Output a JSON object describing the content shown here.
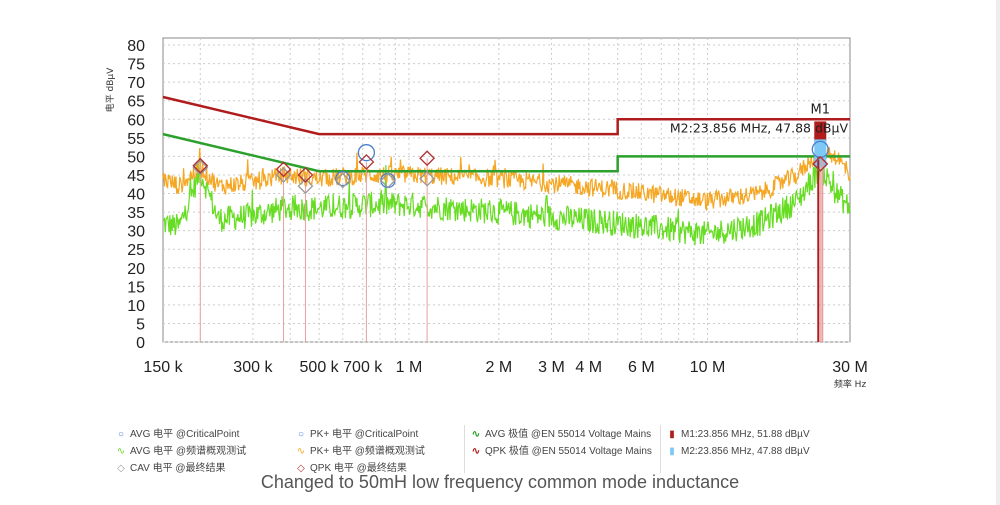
{
  "chart_data": {
    "type": "line",
    "ylabel": "电平 dBµV",
    "xlabel": "频率 Hz",
    "xscale": "log",
    "xlim": [
      150000,
      30000000
    ],
    "ylim": [
      0,
      80
    ],
    "yticks": [
      0,
      5,
      10,
      15,
      20,
      25,
      30,
      35,
      40,
      45,
      50,
      55,
      60,
      65,
      70,
      75,
      80
    ],
    "xticks": [
      {
        "v": 150000,
        "label": "150 k"
      },
      {
        "v": 300000,
        "label": "300 k"
      },
      {
        "v": 500000,
        "label": "500 k"
      },
      {
        "v": 700000,
        "label": "700 k"
      },
      {
        "v": 1000000,
        "label": "1 M"
      },
      {
        "v": 2000000,
        "label": "2 M"
      },
      {
        "v": 3000000,
        "label": "3 M"
      },
      {
        "v": 4000000,
        "label": "4 M"
      },
      {
        "v": 6000000,
        "label": "6 M"
      },
      {
        "v": 10000000,
        "label": "10 M"
      },
      {
        "v": 30000000,
        "label": "30 M"
      }
    ],
    "grid": true,
    "series": [
      {
        "name": "QPK 极值 @EN 55014 Voltage Mains",
        "color": "#b01c1c",
        "x": [
          150000,
          500000,
          5000000,
          5000000,
          30000000
        ],
        "y": [
          66,
          56,
          56,
          60,
          60
        ]
      },
      {
        "name": "AVG 极值 @EN 55014 Voltage Mains",
        "color": "#2ca02c",
        "x": [
          150000,
          500000,
          5000000,
          5000000,
          30000000
        ],
        "y": [
          56,
          46,
          46,
          50,
          50
        ]
      },
      {
        "name": "PK+ 电平 @频谱概观测试",
        "color": "#f5a623",
        "x": [
          150000,
          170000,
          200000,
          230000,
          300000,
          380000,
          500000,
          700000,
          1000000,
          2000000,
          5000000,
          10000000,
          15000000,
          20000000,
          23856000,
          27000000,
          30000000
        ],
        "y": [
          44,
          42,
          47,
          42,
          43,
          45,
          44,
          45,
          45,
          44,
          41,
          38,
          40,
          45,
          52,
          50,
          45
        ]
      },
      {
        "name": "AVG 电平 @频谱概观测试",
        "color": "#66dd22",
        "x": [
          150000,
          170000,
          200000,
          230000,
          300000,
          380000,
          500000,
          700000,
          1000000,
          2000000,
          5000000,
          10000000,
          15000000,
          20000000,
          23856000,
          27000000,
          30000000
        ],
        "y": [
          32,
          31,
          46,
          33,
          34,
          36,
          36,
          37,
          37,
          35,
          32,
          29,
          32,
          38,
          47,
          40,
          36
        ]
      }
    ],
    "points": {
      "avg_critical": {
        "name": "AVG 电平 @CriticalPoint",
        "color": "#4a7fd0",
        "x": [
          600000,
          850000
        ],
        "y": [
          44,
          43.5
        ]
      },
      "pk_critical": {
        "name": "PK+ 电平 @CriticalPoint",
        "color": "#4a7fd0",
        "x": [
          720000,
          23856000
        ],
        "y": [
          51,
          51.88
        ]
      },
      "cav_final": {
        "name": "CAV 电平 @最终结果",
        "color": "#999999",
        "x": [
          200000,
          380000,
          450000,
          600000,
          850000,
          1150000,
          23856000
        ],
        "y": [
          47,
          45,
          42,
          43.5,
          43.5,
          44,
          47.88
        ]
      },
      "qpk_final": {
        "name": "QPK 电平 @最终结果",
        "color": "#b03030",
        "x": [
          200000,
          380000,
          450000,
          720000,
          1150000,
          23856000
        ],
        "y": [
          47.5,
          46.5,
          45,
          48.5,
          49.5,
          48
        ]
      }
    },
    "markers": [
      {
        "label": "M1",
        "text": "M1:23.856 MHz, 51.88 dBµV",
        "x": 23856000,
        "y": 51.88,
        "color": "#b01c1c"
      },
      {
        "label": "M2",
        "text": "M2:23.856 MHz, 47.88 dBµV",
        "x": 23856000,
        "y": 47.88,
        "color": "#7ec8f5"
      }
    ],
    "annotation_text": "M2:23.856 MHz, 47.88 dBµV",
    "marker_label": "M1"
  },
  "legend": [
    {
      "sym": "○",
      "color": "#4a7fd0",
      "text": "AVG 电平 @CriticalPoint"
    },
    {
      "sym": "∿",
      "color": "#66dd22",
      "text": "AVG 电平 @频谱概观测试"
    },
    {
      "sym": "◇",
      "color": "#999999",
      "text": "CAV 电平 @最终结果"
    },
    {
      "sym": "○",
      "color": "#4a7fd0",
      "text": "PK+ 电平 @CriticalPoint"
    },
    {
      "sym": "∿",
      "color": "#f5a623",
      "text": "PK+ 电平 @频谱概观测试"
    },
    {
      "sym": "◇",
      "color": "#b03030",
      "text": "QPK 电平 @最终结果"
    },
    {
      "sym": "∿",
      "color": "#2ca02c",
      "text": "AVG 极值 @EN 55014 Voltage Mains"
    },
    {
      "sym": "∿",
      "color": "#b01c1c",
      "text": "QPK 极值 @EN 55014 Voltage Mains"
    },
    {
      "sym": "▮",
      "color": "#b01c1c",
      "text": "M1:23.856 MHz, 51.88 dBµV"
    },
    {
      "sym": "▮",
      "color": "#7ec8f5",
      "text": "M2:23.856 MHz, 47.88 dBµV"
    }
  ],
  "caption": "Changed to 50mH low frequency common mode inductance"
}
